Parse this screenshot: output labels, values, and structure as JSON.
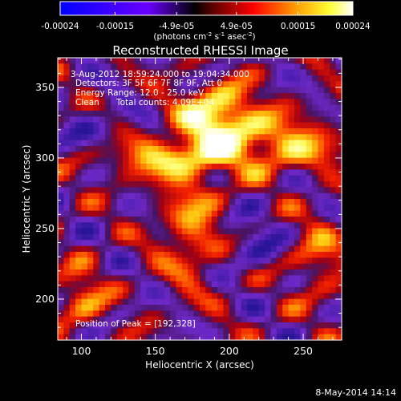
{
  "colorbar": {
    "ticks": [
      "-0.00024",
      "-0.00015",
      "-4.9e-05",
      "4.9e-05",
      "0.00015",
      "0.00024"
    ],
    "tick_values": [
      -0.00024,
      -0.00015,
      -4.9e-05,
      4.9e-05,
      0.00015,
      0.00024
    ],
    "range": [
      -0.00024,
      0.00024
    ],
    "units_main": "(photons cm",
    "units_exp1": "-2",
    "units_mid": " s",
    "units_exp2": "-1",
    "units_end": " asec",
    "units_exp3": "-2",
    "units_close": ")",
    "palette": [
      "#0000ff",
      "#5a00ff",
      "#ff0000",
      "#ff7f00",
      "#ffff00",
      "#ffffff"
    ]
  },
  "chart_data": {
    "type": "heatmap",
    "title": "Reconstructed RHESSI Image",
    "xlabel": "Heliocentric X (arcsec)",
    "ylabel": "Heliocentric Y (arcsec)",
    "xlim": [
      84,
      276
    ],
    "ylim": [
      171,
      371
    ],
    "xticks": [
      100,
      150,
      200,
      250
    ],
    "yticks": [
      200,
      250,
      300,
      350
    ],
    "peak": {
      "x": 192,
      "y": 328
    },
    "annotations": {
      "time": "3-Aug-2012 18:59:24.000 to 19:04:34.000",
      "detectors": "Detectors: 3F 5F 6F 7F 8F 9F, Att 0",
      "energy": "Energy Range: 12.0 - 25.0 keV",
      "clean_label": "Clean",
      "counts": "Total counts: 4.09E+04",
      "peak_text": "Position of Peak = [192,328]"
    }
  },
  "footer": {
    "date": "8-May-2014 14:14"
  }
}
